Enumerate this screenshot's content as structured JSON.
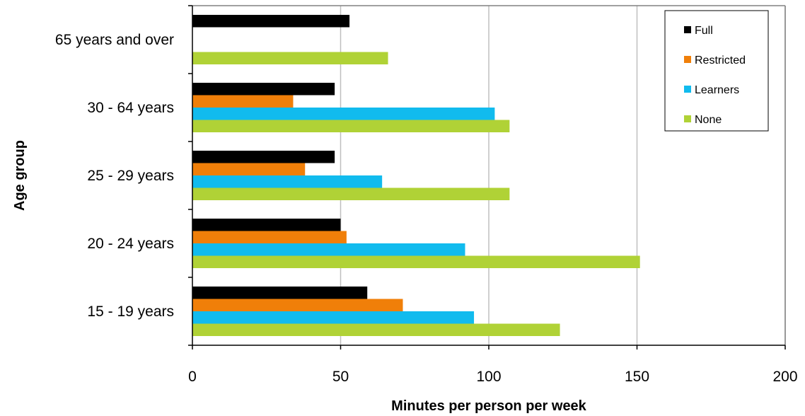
{
  "chart_data": {
    "type": "bar",
    "orientation": "horizontal",
    "xlabel": "Minutes per person per week",
    "ylabel": "Age group",
    "xlim": [
      0,
      200
    ],
    "xticks": [
      0,
      50,
      100,
      150,
      200
    ],
    "grid": true,
    "legend_position": "top-right",
    "categories": [
      "15 - 19 years",
      "20 - 24 years",
      "25 - 29 years",
      "30 - 64 years",
      "65 years and over"
    ],
    "series": [
      {
        "name": "Full",
        "color": "#000000",
        "values": [
          59,
          50,
          48,
          48,
          53
        ]
      },
      {
        "name": "Restricted",
        "color": "#f07f09",
        "values": [
          71,
          52,
          38,
          34,
          0
        ]
      },
      {
        "name": "Learners",
        "color": "#11bbee",
        "values": [
          95,
          92,
          64,
          102,
          0
        ]
      },
      {
        "name": "None",
        "color": "#b0d236",
        "values": [
          124,
          151,
          107,
          107,
          66
        ]
      }
    ]
  }
}
